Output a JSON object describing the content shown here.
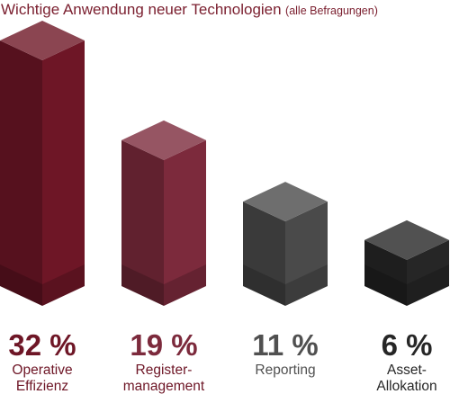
{
  "chart_data": {
    "type": "bar",
    "title": "Wichtige Anwendung neuer Technologien",
    "subtitle": "(alle Befragungen)",
    "xlabel": "",
    "ylabel": "",
    "ylim": [
      0,
      32
    ],
    "grid": false,
    "legend": "none",
    "categories": [
      [
        "Operative",
        "Effizienz"
      ],
      [
        "Register-",
        "management"
      ],
      [
        "Reporting"
      ],
      [
        "Asset-",
        "Allokation"
      ]
    ],
    "values": [
      32,
      19,
      11,
      6
    ],
    "value_labels": [
      "32 %",
      "19 %",
      "11 %",
      "6 %"
    ],
    "colors": {
      "bar_fronts": [
        "#6e1626",
        "#7c2a3c",
        "#4a4a4a",
        "#262626"
      ],
      "value_text": [
        "#6e1626",
        "#7c2a3c",
        "#505050",
        "#262626"
      ],
      "label_text": [
        "#6e1626",
        "#6e1626",
        "#505050",
        "#262626"
      ]
    }
  }
}
